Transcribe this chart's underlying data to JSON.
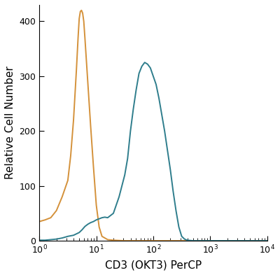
{
  "xlabel": "CD3 (OKT3) PerCP",
  "ylabel": "Relative Cell Number",
  "xlim": [
    5,
    10000
  ],
  "ylim": [
    0,
    430
  ],
  "yticks": [
    0,
    100,
    200,
    300,
    400
  ],
  "xticks": [
    1,
    10,
    100,
    1000,
    10000
  ],
  "xticklabels": [
    "10^0",
    "10^1",
    "10^2",
    "10^3",
    "10^4"
  ],
  "orange_color": "#D4913A",
  "blue_color": "#2E7D8C",
  "background_color": "#ffffff",
  "linewidth": 1.4,
  "orange_curve": {
    "x_log": [
      -0.15,
      0.0,
      0.1,
      0.2,
      0.3,
      0.4,
      0.5,
      0.55,
      0.6,
      0.65,
      0.68,
      0.7,
      0.72,
      0.74,
      0.76,
      0.78,
      0.8,
      0.85,
      0.9,
      0.95,
      1.0,
      1.05,
      1.1,
      1.2,
      1.3,
      1.5,
      1.7,
      2.0,
      2.5,
      3.0,
      4.0
    ],
    "y": [
      30,
      35,
      38,
      42,
      55,
      80,
      110,
      155,
      220,
      310,
      370,
      405,
      418,
      420,
      415,
      400,
      370,
      290,
      210,
      135,
      65,
      25,
      8,
      2,
      1,
      0,
      0,
      0,
      0,
      0,
      0
    ]
  },
  "blue_curve": {
    "x_log": [
      -0.15,
      0.0,
      0.1,
      0.2,
      0.3,
      0.4,
      0.5,
      0.6,
      0.7,
      0.75,
      0.8,
      0.85,
      0.9,
      0.95,
      1.0,
      1.05,
      1.1,
      1.15,
      1.2,
      1.3,
      1.4,
      1.5,
      1.55,
      1.6,
      1.65,
      1.7,
      1.75,
      1.8,
      1.85,
      1.9,
      1.95,
      2.0,
      2.05,
      2.1,
      2.15,
      2.2,
      2.25,
      2.3,
      2.35,
      2.4,
      2.45,
      2.5,
      2.55,
      2.6,
      2.7,
      2.8,
      3.0,
      3.5,
      4.0
    ],
    "y": [
      0,
      1,
      1,
      2,
      3,
      5,
      8,
      10,
      15,
      20,
      26,
      30,
      33,
      35,
      38,
      40,
      42,
      43,
      42,
      50,
      80,
      120,
      150,
      200,
      240,
      275,
      305,
      318,
      325,
      322,
      315,
      300,
      285,
      260,
      230,
      200,
      165,
      130,
      90,
      55,
      25,
      8,
      3,
      1,
      0,
      0,
      0,
      0,
      0
    ]
  }
}
